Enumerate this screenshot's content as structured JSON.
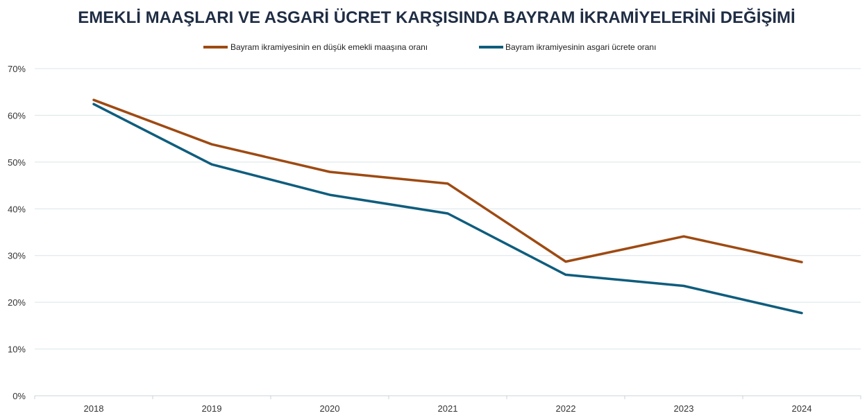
{
  "chart_data": {
    "type": "line",
    "title": "EMEKLİ MAAŞLARI VE ASGARİ ÜCRET KARŞISINDA BAYRAM İKRAMİYELERİNİ DEĞİŞİMİ",
    "xlabel": "",
    "ylabel": "",
    "categories": [
      "2018",
      "2019",
      "2020",
      "2021",
      "2022",
      "2023",
      "2024"
    ],
    "ylim": [
      0,
      70
    ],
    "yticks": [
      "0%",
      "10%",
      "20%",
      "30%",
      "40%",
      "50%",
      "60%",
      "70%"
    ],
    "grid": true,
    "legend_position": "top",
    "series": [
      {
        "name": "Bayram ikramiyesinin en düşük emekli maaşına oranı",
        "color": "#9e4a12",
        "values": [
          63.3,
          53.8,
          47.9,
          45.4,
          28.7,
          34.1,
          28.6
        ]
      },
      {
        "name": "Bayram ikramiyesinin asgari ücrete oranı",
        "color": "#0f5d7d",
        "values": [
          62.4,
          49.5,
          43.0,
          39.0,
          25.9,
          23.5,
          17.7
        ]
      }
    ]
  }
}
